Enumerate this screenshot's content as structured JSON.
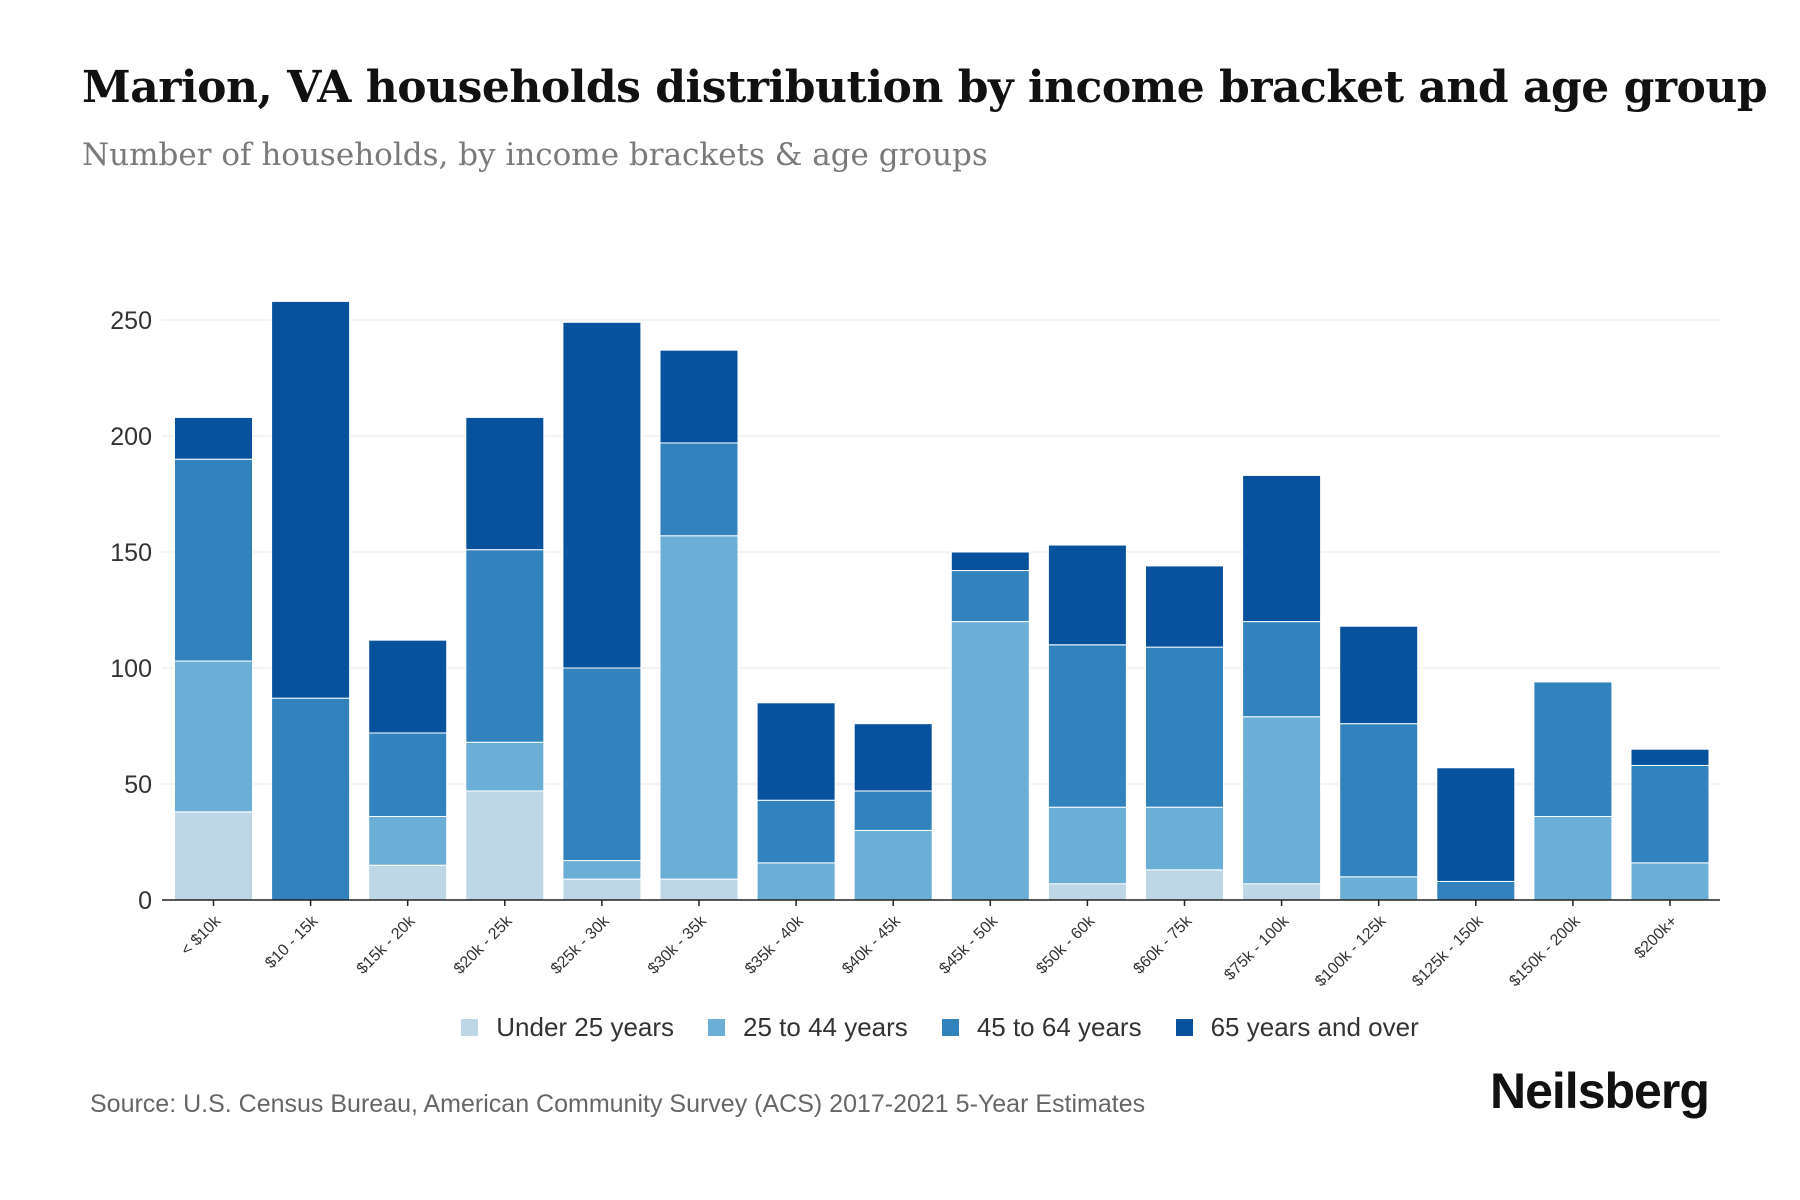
{
  "header": {
    "title": "Marion, VA households distribution by income bracket and age group",
    "subtitle": "Number of households, by income brackets & age groups"
  },
  "chart_data": {
    "type": "bar",
    "stacked": true,
    "title": "Marion, VA households distribution by income bracket and age group",
    "subtitle": "Number of households, by income brackets & age groups",
    "xlabel": "",
    "ylabel": "",
    "ylim": [
      0,
      260
    ],
    "yticks": [
      0,
      50,
      100,
      150,
      200,
      250
    ],
    "grid": true,
    "legend_position": "bottom",
    "categories": [
      "< $10k",
      "$10 - 15k",
      "$15k - 20k",
      "$20k - 25k",
      "$25k - 30k",
      "$30k - 35k",
      "$35k - 40k",
      "$40k - 45k",
      "$45k - 50k",
      "$50k - 60k",
      "$60k - 75k",
      "$75k - 100k",
      "$100k - 125k",
      "$125k - 150k",
      "$150k - 200k",
      "$200k+"
    ],
    "series": [
      {
        "name": "Under 25 years",
        "color": "#bdd7e7",
        "values": [
          38,
          0,
          15,
          47,
          9,
          9,
          0,
          0,
          0,
          7,
          13,
          7,
          0,
          0,
          0,
          0
        ]
      },
      {
        "name": "25 to 44 years",
        "color": "#6baed6",
        "values": [
          65,
          0,
          21,
          21,
          8,
          148,
          16,
          30,
          120,
          33,
          27,
          72,
          10,
          0,
          36,
          16
        ]
      },
      {
        "name": "45 to 64 years",
        "color": "#3182bd",
        "values": [
          87,
          87,
          36,
          83,
          83,
          40,
          27,
          17,
          22,
          70,
          69,
          41,
          66,
          8,
          58,
          42
        ]
      },
      {
        "name": "65 years and over",
        "color": "#08519c",
        "values": [
          18,
          171,
          40,
          57,
          149,
          40,
          42,
          29,
          8,
          43,
          35,
          63,
          42,
          49,
          0,
          7
        ]
      }
    ]
  },
  "legend": {
    "items": [
      {
        "label": "Under 25 years",
        "color": "#bdd7e7"
      },
      {
        "label": "25 to 44 years",
        "color": "#6baed6"
      },
      {
        "label": "45 to 64 years",
        "color": "#3182bd"
      },
      {
        "label": "65 years and over",
        "color": "#08519c"
      }
    ]
  },
  "footer": {
    "source": "Source: U.S. Census Bureau, American Community Survey (ACS) 2017-2021 5-Year Estimates",
    "brand": "Neilsberg"
  }
}
